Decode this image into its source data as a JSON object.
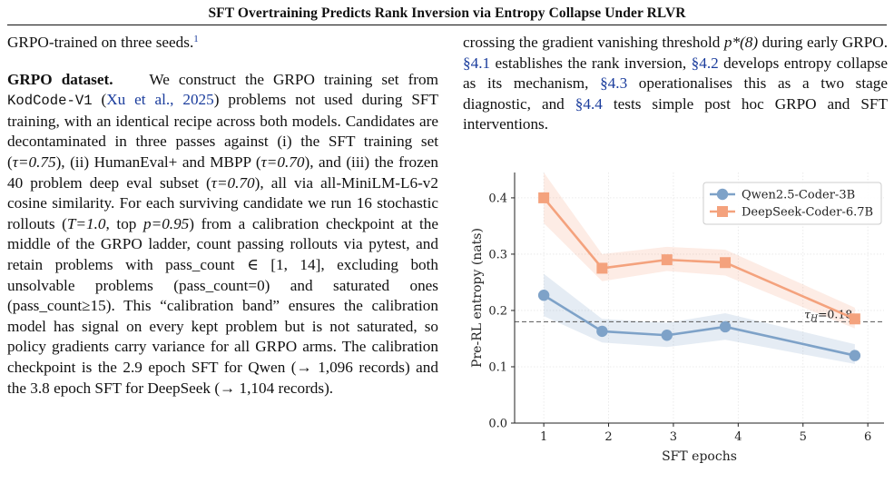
{
  "header": {
    "running_title": "SFT Overtraining Predicts Rank Inversion via Entropy Collapse Under RLVR"
  },
  "left_column": {
    "p0_text": "GRPO-trained on three seeds.",
    "p0_footnote": "1",
    "p1_heading": "GRPO dataset.",
    "p1_a": "We construct the GRPO training set from ",
    "p1_dataset": "KodCode-V1",
    "p1_b": " (",
    "p1_cite": "Xu et al., 2025",
    "p1_c": ") problems not used during SFT training, with an identical recipe across both models. Candidates are decontaminated in three passes against (i) the SFT training set (",
    "p1_tau1": "τ=0.75",
    "p1_d": "), (ii) HumanEval+ and MBPP (",
    "p1_tau2": "τ=0.70",
    "p1_e": "), and (iii) the frozen 40 problem deep eval subset (",
    "p1_tau3": "τ=0.70",
    "p1_f": "), all via all-MiniLM-L6-v2 cosine similarity. For each surviving candidate we run 16 stochastic rollouts (",
    "p1_T": "T=1.0",
    "p1_g": ", top ",
    "p1_p": "p=0.95",
    "p1_h": ") from a calibration checkpoint at the middle of the GRPO ladder, count passing rollouts via pytest, and retain problems with pass_count ∈ [1, 14], excluding both unsolvable problems (pass_count=0) and saturated ones (pass_count≥15). This “calibration band” ensures the calibration model has signal on every kept problem but is not saturated, so policy gradients carry variance for all GRPO arms. The calibration checkpoint is the 2.9 epoch SFT for Qwen (→ 1,096 records) and the 3.8 epoch SFT for DeepSeek (→ 1,104 records)."
  },
  "right_column": {
    "p_a": "crossing the gradient vanishing threshold ",
    "p_math": "p*(8)",
    "p_b": " during early GRPO. ",
    "ref1": "§4.1",
    "p_c": " establishes the rank inversion, ",
    "ref2": "§4.2",
    "p_d": " develops entropy collapse as its mechanism, ",
    "ref3": "§4.3",
    "p_e": " operationalises this as a two stage diagnostic, and ",
    "ref4": "§4.4",
    "p_f": " tests simple post hoc GRPO and SFT interventions."
  },
  "colors": {
    "qwen": "#7ea2c8",
    "deepseek": "#f4a27d",
    "link": "#1a3c9c"
  },
  "chart_data": {
    "type": "line",
    "title": "",
    "xlabel": "SFT epochs",
    "ylabel": "Pre-RL entropy (nats)",
    "xlim": [
      0.55,
      6.25
    ],
    "ylim": [
      0.0,
      0.445
    ],
    "xticks": [
      1,
      2,
      3,
      4,
      5,
      6
    ],
    "yticks": [
      0.0,
      0.1,
      0.2,
      0.3,
      0.4
    ],
    "ytick_labels": [
      "0.0",
      "0.1",
      "0.2",
      "0.3",
      "0.4"
    ],
    "grid": true,
    "legend_position": "upper right",
    "series": [
      {
        "name": "Qwen2.5-Coder-3B",
        "color": "#7ea2c8",
        "marker": "circle",
        "x": [
          1.0,
          1.9,
          2.9,
          3.8,
          5.8
        ],
        "y": [
          0.227,
          0.163,
          0.156,
          0.171,
          0.12
        ],
        "band_low": [
          0.19,
          0.143,
          0.135,
          0.148,
          0.105
        ],
        "band_high": [
          0.265,
          0.185,
          0.178,
          0.195,
          0.14
        ]
      },
      {
        "name": "DeepSeek-Coder-6.7B",
        "color": "#f4a27d",
        "marker": "square",
        "x": [
          1.0,
          1.9,
          2.9,
          3.8,
          5.8
        ],
        "y": [
          0.4,
          0.275,
          0.29,
          0.285,
          0.185
        ],
        "band_low": [
          0.355,
          0.252,
          0.27,
          0.262,
          0.168
        ],
        "band_high": [
          0.445,
          0.3,
          0.313,
          0.308,
          0.205
        ]
      }
    ],
    "threshold": {
      "y": 0.18,
      "label": "τ_H=0.18"
    }
  }
}
